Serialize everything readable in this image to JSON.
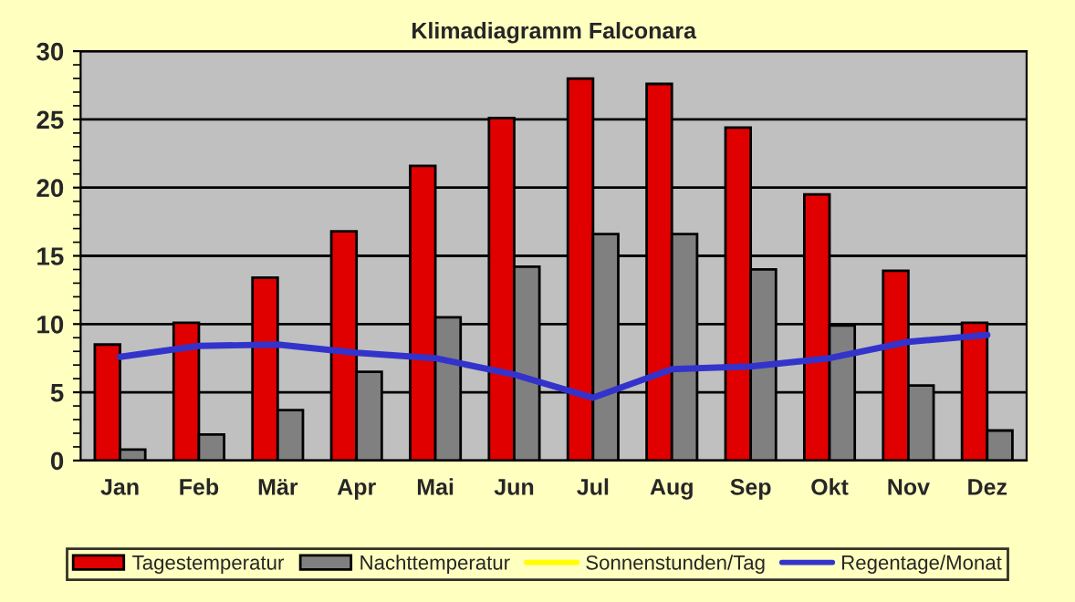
{
  "chart_data": {
    "type": "bar",
    "title": "Klimadiagramm Falconara",
    "categories": [
      "Jan",
      "Feb",
      "Mär",
      "Apr",
      "Mai",
      "Jun",
      "Jul",
      "Aug",
      "Sep",
      "Okt",
      "Nov",
      "Dez"
    ],
    "series": [
      {
        "name": "Tagestemperatur",
        "color": "#e00000",
        "values": [
          8.5,
          10.1,
          13.4,
          16.8,
          21.6,
          25.1,
          28.0,
          27.6,
          24.4,
          19.5,
          13.9,
          10.1
        ]
      },
      {
        "name": "Nachttemperatur",
        "color": "#808080",
        "values": [
          0.8,
          1.9,
          3.7,
          6.5,
          10.5,
          14.2,
          16.6,
          16.6,
          14.0,
          9.9,
          5.5,
          2.2
        ]
      },
      {
        "name": "Sonnenstunden/Tag",
        "type": "line",
        "color": "#ffff00",
        "values": [
          null,
          null,
          null,
          null,
          null,
          null,
          null,
          null,
          null,
          null,
          null,
          null
        ]
      },
      {
        "name": "Regentage/Monat",
        "type": "line",
        "color": "#3333cc",
        "values": [
          7.6,
          8.4,
          8.5,
          7.9,
          7.5,
          6.3,
          4.6,
          6.7,
          6.9,
          7.5,
          8.7,
          9.2
        ]
      }
    ],
    "ylim": [
      0,
      30
    ],
    "yticks": [
      0,
      5,
      10,
      15,
      20,
      25,
      30
    ],
    "grid": "y",
    "legend": "bottom"
  }
}
